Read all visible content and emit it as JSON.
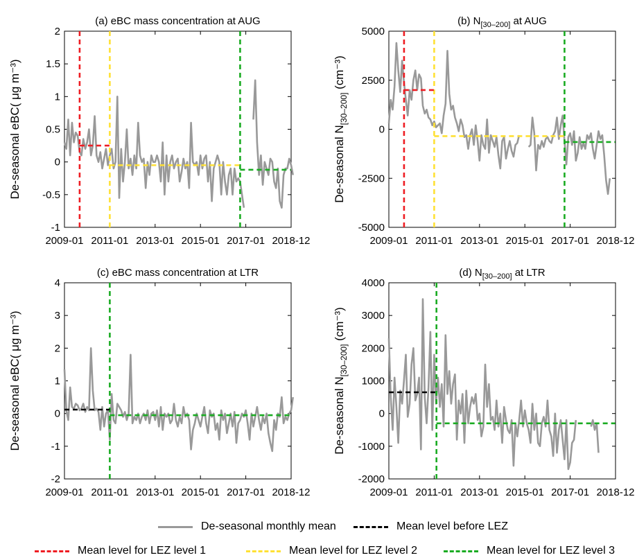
{
  "chart_data": [
    {
      "type": "line",
      "panel": "a",
      "title_main": "(a) eBC mass concentration at AUG",
      "ylabel": "De-seasonal eBC( μg m⁻³)",
      "xlim": [
        "2009-01",
        "2018-12"
      ],
      "ylim": [
        -1,
        2
      ],
      "xticks": [
        "2009-01",
        "2011-01",
        "2013-01",
        "2015-01",
        "2017-01",
        "2018-12"
      ],
      "yticks": [
        "-1",
        "-0.5",
        "0",
        "0.5",
        "1",
        "1.5",
        "2"
      ],
      "series_values": [
        0.3,
        0.2,
        0.65,
        0.1,
        0.6,
        0.3,
        0.45,
        0.4,
        0.15,
        0.1,
        0.35,
        0.2,
        0.3,
        0.5,
        0.1,
        0.25,
        0.7,
        0.1,
        0.0,
        0.15,
        -0.1,
        0.05,
        0.2,
        -0.05,
        0.1,
        0.2,
        -0.1,
        0.0,
        1.0,
        -0.55,
        0.2,
        -0.3,
        0.0,
        0.5,
        -0.1,
        0.05,
        -0.2,
        0.1,
        -0.1,
        0.6,
        0.1,
        0.0,
        0.05,
        -0.4,
        0.0,
        -0.2,
        0.1,
        0.0,
        0.0,
        0.1,
        0.0,
        -0.3,
        0.3,
        -0.5,
        0.1,
        -0.3,
        0.0,
        0.1,
        -0.1,
        0.0,
        0.05,
        -0.3,
        -0.15,
        0.05,
        -0.1,
        0.0,
        -0.4,
        0.6,
        0.0,
        -0.05,
        0.0,
        -0.2,
        0.1,
        -0.1,
        0.05,
        0.1,
        -0.3,
        0.0,
        -0.6,
        -0.1,
        0.0,
        0.1,
        0.0,
        -0.5,
        0.0,
        -0.3,
        -0.5,
        -0.2,
        -0.1,
        -0.5,
        -0.1,
        -0.3,
        -0.25,
        -0.3,
        -0.5,
        -0.7,
        null,
        null,
        null,
        null,
        0.65,
        1.25,
        0.3,
        -0.2,
        0.1,
        -0.35,
        0.0,
        -0.1,
        -0.2,
        0.05,
        0.0,
        -0.3,
        -0.4,
        -0.1,
        -0.6,
        -0.7,
        -0.2,
        -0.1,
        -0.1,
        0.05,
        -0.05,
        -0.2
      ],
      "vlines": [
        {
          "x": 2009.67,
          "color": "#ee1d23"
        },
        {
          "x": 2011.0,
          "color": "#ffe135"
        },
        {
          "x": 2016.75,
          "color": "#1aab22"
        }
      ],
      "hlines": [
        {
          "x0": 2009.67,
          "x1": 2011.0,
          "y": 0.25,
          "color": "#ee1d23"
        },
        {
          "x0": 2011.0,
          "x1": 2016.75,
          "y": -0.05,
          "color": "#ffe135"
        },
        {
          "x0": 2016.75,
          "x1": 2018.99,
          "y": -0.12,
          "color": "#1aab22"
        }
      ]
    },
    {
      "type": "line",
      "panel": "b",
      "title_main": "(b) N",
      "title_sub": "[30–200]",
      "title_suffix": " at AUG",
      "ylabel_main": "De-seasonal N",
      "ylabel_sub": "[30–200]",
      "ylabel_suffix": " (cm⁻³)",
      "xlim": [
        "2009-01",
        "2018-12"
      ],
      "ylim": [
        -5000,
        5000
      ],
      "xticks": [
        "2009-01",
        "2011-01",
        "2013-01",
        "2015-01",
        "2017-01",
        "2018-12"
      ],
      "yticks": [
        "-5000",
        "-2500",
        "0",
        "2500",
        "5000"
      ],
      "series_values": [
        300,
        1500,
        1000,
        2200,
        4400,
        3000,
        1900,
        3500,
        2400,
        1500,
        700,
        2000,
        1500,
        2500,
        3000,
        2000,
        2800,
        2600,
        1200,
        800,
        1000,
        600,
        500,
        200,
        400,
        100,
        200,
        300,
        -200,
        700,
        1300,
        4000,
        1800,
        1000,
        1200,
        600,
        300,
        -100,
        500,
        200,
        -400,
        -300,
        -1000,
        -300,
        0,
        -800,
        200,
        -600,
        -1600,
        -300,
        -800,
        -1000,
        500,
        -1200,
        -300,
        -600,
        -900,
        -400,
        -1300,
        -2000,
        -600,
        -400,
        -1500,
        -1000,
        -600,
        -1100,
        -1400,
        -800,
        -700,
        -300,
        null,
        null,
        null,
        null,
        -900,
        -800,
        600,
        -200,
        -2100,
        -800,
        -1000,
        -600,
        -900,
        -500,
        -400,
        -600,
        -700,
        -300,
        -100,
        600,
        -500,
        200,
        700,
        -600,
        -1800,
        -400,
        -200,
        -800,
        -100,
        -1600,
        -1200,
        -400,
        -1000,
        -700,
        -1000,
        -300,
        -500,
        -200,
        -1000,
        -1500,
        -800,
        -100,
        -500,
        -300,
        -1300,
        -2600,
        -3300,
        -2500
      ],
      "vlines": [
        {
          "x": 2009.67,
          "color": "#ee1d23"
        },
        {
          "x": 2011.0,
          "color": "#ffe135"
        },
        {
          "x": 2016.75,
          "color": "#1aab22"
        }
      ],
      "hlines": [
        {
          "x0": 2009.67,
          "x1": 2011.0,
          "y": 2000,
          "color": "#ee1d23"
        },
        {
          "x0": 2011.0,
          "x1": 2016.75,
          "y": -350,
          "color": "#ffe135"
        },
        {
          "x0": 2016.75,
          "x1": 2018.99,
          "y": -650,
          "color": "#1aab22"
        }
      ]
    },
    {
      "type": "line",
      "panel": "c",
      "title_main": "(c) eBC mass concentration at LTR",
      "ylabel": "De-seasonal eBC( μg m⁻³)",
      "xlim": [
        "2009-01",
        "2018-12"
      ],
      "ylim": [
        -2,
        4
      ],
      "xticks": [
        "2009-01",
        "2011-01",
        "2013-01",
        "2015-01",
        "2017-01",
        "2018-12"
      ],
      "yticks": [
        "-2",
        "-1",
        "0",
        "1",
        "2",
        "3",
        "4"
      ],
      "series_values": [
        1.35,
        0.1,
        -0.2,
        0.8,
        0.2,
        0.15,
        0.3,
        0.25,
        0.1,
        0.15,
        0.3,
        0.05,
        0.2,
        0.1,
        2.0,
        0.7,
        0.1,
        0.15,
        0.05,
        -0.5,
        0.2,
        -0.4,
        0.0,
        0.1,
        -0.8,
        0.6,
        -0.2,
        -0.3,
        0.3,
        0.2,
        0.1,
        -0.1,
        0.05,
        -0.2,
        0.0,
        1.8,
        -0.3,
        -0.1,
        -0.2,
        0.0,
        -0.3,
        -0.1,
        0.0,
        -0.2,
        0.1,
        -0.3,
        0.0,
        0.05,
        -0.2,
        0.1,
        -0.4,
        0.2,
        -0.5,
        0.0,
        -0.1,
        0.0,
        -0.3,
        -0.2,
        0.3,
        -0.2,
        -0.4,
        -0.1,
        -0.3,
        0.2,
        -0.1,
        0.0,
        -0.2,
        -1.1,
        -0.5,
        -0.3,
        0.0,
        -0.2,
        -0.4,
        -0.1,
        0.2,
        -0.3,
        -0.6,
        0.1,
        -0.1,
        0.0,
        -0.5,
        -0.3,
        -0.8,
        0.1,
        -0.2,
        0.0,
        -0.6,
        -0.3,
        0.0,
        -0.4,
        0.05,
        -0.9,
        -0.3,
        -0.2,
        0.0,
        -0.1,
        0.1,
        -0.3,
        -0.8,
        0.0,
        -0.4,
        -0.1,
        0.2,
        -0.2,
        -0.5,
        -0.1,
        -0.3,
        0.0,
        -0.6,
        -0.9,
        -1.15,
        -0.2,
        -0.5,
        0.0,
        -0.1,
        0.5,
        -0.3,
        -0.1,
        -0.2,
        0.0,
        0.1,
        0.5
      ],
      "vlines": [
        {
          "x": 2011.0,
          "color": "#1aab22"
        }
      ],
      "hlines": [
        {
          "x0": 2009.0,
          "x1": 2011.0,
          "y": 0.12,
          "color": "#000000"
        },
        {
          "x0": 2011.0,
          "x1": 2018.99,
          "y": -0.05,
          "color": "#1aab22"
        }
      ]
    },
    {
      "type": "line",
      "panel": "d",
      "title_main": "(d) N",
      "title_sub": "[30–200]",
      "title_suffix": " at LTR",
      "ylabel_main": "De-seasonal N",
      "ylabel_sub": "[30–200]",
      "ylabel_suffix": " (cm⁻³)",
      "xlim": [
        "2009-01",
        "2018-12"
      ],
      "ylim": [
        -2000,
        4000
      ],
      "xticks": [
        "2009-01",
        "2011-01",
        "2013-01",
        "2015-01",
        "2017-01",
        "2018-12"
      ],
      "yticks": [
        "-2000",
        "-1000",
        "0",
        "1000",
        "2000",
        "3000",
        "4000"
      ],
      "series_values": [
        2300,
        500,
        -500,
        1100,
        200,
        -900,
        700,
        300,
        1000,
        1800,
        -100,
        300,
        1500,
        2000,
        400,
        600,
        1100,
        -1100,
        3500,
        500,
        -300,
        800,
        2500,
        -500,
        1800,
        300,
        1100,
        200,
        900,
        -400,
        2400,
        600,
        1300,
        300,
        900,
        1200,
        -800,
        400,
        0,
        600,
        -900,
        700,
        -300,
        200,
        500,
        300,
        600,
        -200,
        0,
        -700,
        -400,
        1500,
        200,
        900,
        -200,
        -100,
        -500,
        400,
        -400,
        0,
        -900,
        200,
        -200,
        -500,
        -600,
        -200,
        -1600,
        -300,
        -700,
        -200,
        400,
        -400,
        100,
        -300,
        -500,
        -900,
        300,
        -500,
        0,
        -900,
        -1000,
        -300,
        -100,
        -400,
        400,
        -500,
        -700,
        -1300,
        0,
        -1200,
        -500,
        -200,
        -800,
        -1400,
        -200,
        -1700,
        -1500,
        -900,
        -800,
        -200,
        null,
        null,
        null,
        500,
        null,
        null,
        null,
        -400,
        -200,
        -500,
        -300,
        -1200
      ],
      "vlines": [
        {
          "x": 2011.1,
          "color": "#1aab22"
        }
      ],
      "hlines": [
        {
          "x0": 2009.0,
          "x1": 2011.1,
          "y": 650,
          "color": "#000000"
        },
        {
          "x0": 2011.1,
          "x1": 2018.99,
          "y": -300,
          "color": "#1aab22"
        }
      ]
    }
  ],
  "legend": {
    "items": [
      {
        "label": "De-seasonal monthly mean",
        "color": "#999999",
        "style": "solid"
      },
      {
        "label": "Mean level before LEZ",
        "color": "#000000",
        "style": "dash"
      },
      {
        "label": "Mean level for LEZ level 1",
        "color": "#ee1d23",
        "style": "dash"
      },
      {
        "label": "Mean level for LEZ level 2",
        "color": "#ffe135",
        "style": "dash"
      },
      {
        "label": "Mean level for LEZ level 3",
        "color": "#1aab22",
        "style": "dash"
      }
    ]
  },
  "colors": {
    "series": "#999999",
    "axis": "#000000"
  }
}
